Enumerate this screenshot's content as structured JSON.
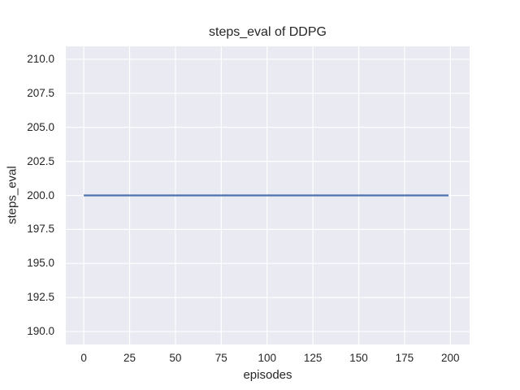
{
  "chart_data": {
    "type": "line",
    "title": "steps_eval of DDPG",
    "xlabel": "episodes",
    "ylabel": "steps_eval",
    "x_ticks": [
      "0",
      "25",
      "50",
      "75",
      "100",
      "125",
      "150",
      "175",
      "200"
    ],
    "y_ticks": [
      "190.0",
      "192.5",
      "195.0",
      "197.5",
      "200.0",
      "202.5",
      "205.0",
      "207.5",
      "210.0"
    ],
    "xlim": [
      -9.8,
      210.5
    ],
    "ylim": [
      189.05,
      210.95
    ],
    "grid": true,
    "legend": "none",
    "series": [
      {
        "name": "DDPG steps_eval",
        "color": "#4c72b0",
        "x": [
          0,
          199
        ],
        "y": [
          200.0,
          200.0
        ]
      }
    ],
    "style": {
      "figure_bg": "#ffffff",
      "plot_bg": "#eaeaf2",
      "grid_color": "#ffffff",
      "text_color": "#262626"
    }
  }
}
